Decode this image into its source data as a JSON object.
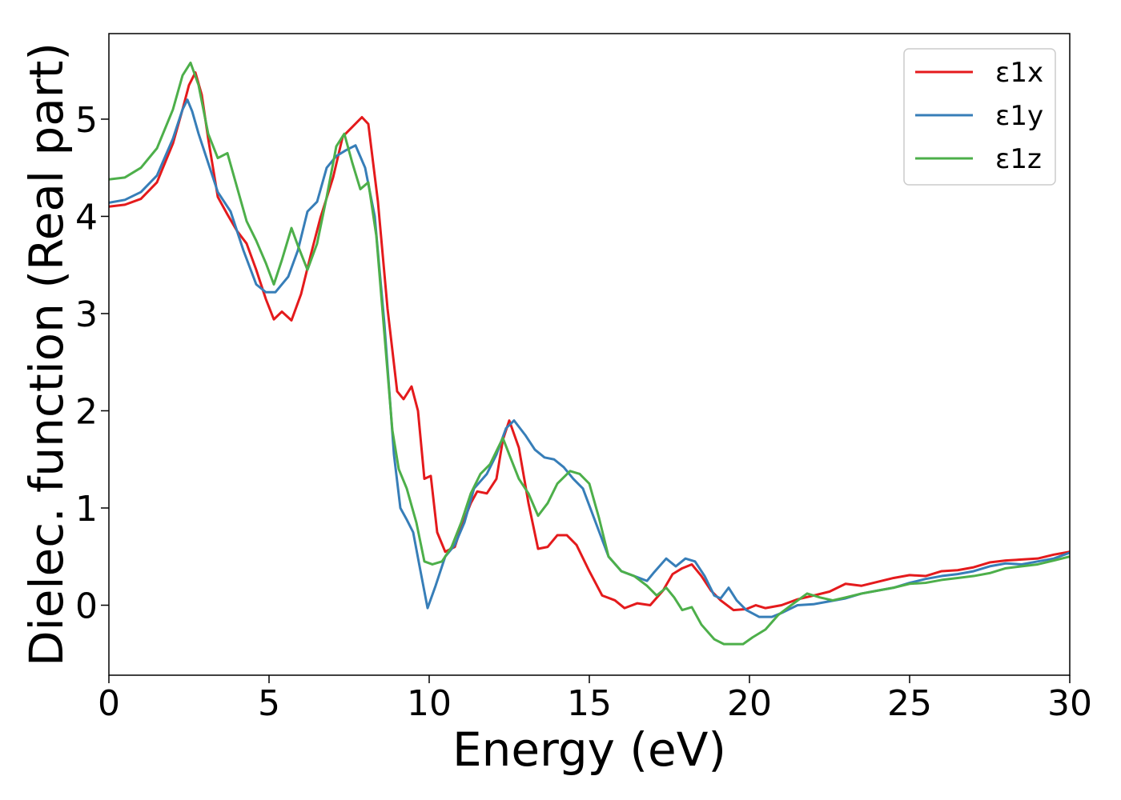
{
  "chart_data": {
    "type": "line",
    "title": "",
    "xlabel": "Energy (eV)",
    "ylabel": "Dielec. function (Real part)",
    "xlim": [
      0,
      30
    ],
    "ylim": [
      -0.72,
      5.88
    ],
    "grid": false,
    "legend_position": "top-right",
    "x_ticks": [
      0,
      5,
      10,
      15,
      20,
      25,
      30
    ],
    "y_ticks": [
      0,
      1,
      2,
      3,
      4,
      5
    ],
    "series": [
      {
        "name": "ε1x",
        "color": "#e41a1c",
        "points": [
          [
            0,
            4.1
          ],
          [
            0.5,
            4.12
          ],
          [
            1,
            4.18
          ],
          [
            1.5,
            4.35
          ],
          [
            2,
            4.75
          ],
          [
            2.3,
            5.1
          ],
          [
            2.5,
            5.35
          ],
          [
            2.7,
            5.48
          ],
          [
            2.9,
            5.25
          ],
          [
            3.1,
            4.8
          ],
          [
            3.4,
            4.2
          ],
          [
            3.7,
            4.02
          ],
          [
            4.0,
            3.85
          ],
          [
            4.3,
            3.72
          ],
          [
            4.6,
            3.45
          ],
          [
            4.9,
            3.15
          ],
          [
            5.15,
            2.94
          ],
          [
            5.4,
            3.02
          ],
          [
            5.7,
            2.93
          ],
          [
            6.0,
            3.2
          ],
          [
            6.3,
            3.6
          ],
          [
            6.6,
            3.98
          ],
          [
            7.0,
            4.4
          ],
          [
            7.3,
            4.82
          ],
          [
            7.6,
            4.92
          ],
          [
            7.9,
            5.02
          ],
          [
            8.1,
            4.95
          ],
          [
            8.4,
            4.15
          ],
          [
            8.7,
            3.05
          ],
          [
            9.0,
            2.2
          ],
          [
            9.2,
            2.12
          ],
          [
            9.45,
            2.25
          ],
          [
            9.65,
            2.0
          ],
          [
            9.85,
            1.3
          ],
          [
            10.05,
            1.33
          ],
          [
            10.25,
            0.75
          ],
          [
            10.5,
            0.55
          ],
          [
            10.8,
            0.6
          ],
          [
            11.0,
            0.8
          ],
          [
            11.3,
            1.05
          ],
          [
            11.5,
            1.17
          ],
          [
            11.8,
            1.15
          ],
          [
            12.1,
            1.3
          ],
          [
            12.3,
            1.7
          ],
          [
            12.5,
            1.9
          ],
          [
            12.8,
            1.62
          ],
          [
            13.1,
            1.05
          ],
          [
            13.4,
            0.58
          ],
          [
            13.7,
            0.6
          ],
          [
            14.0,
            0.72
          ],
          [
            14.3,
            0.72
          ],
          [
            14.6,
            0.62
          ],
          [
            15.0,
            0.35
          ],
          [
            15.4,
            0.1
          ],
          [
            15.8,
            0.05
          ],
          [
            16.1,
            -0.03
          ],
          [
            16.5,
            0.02
          ],
          [
            16.9,
            0.0
          ],
          [
            17.3,
            0.15
          ],
          [
            17.6,
            0.32
          ],
          [
            17.9,
            0.38
          ],
          [
            18.2,
            0.42
          ],
          [
            18.5,
            0.3
          ],
          [
            18.8,
            0.15
          ],
          [
            19.1,
            0.05
          ],
          [
            19.5,
            -0.05
          ],
          [
            19.9,
            -0.04
          ],
          [
            20.2,
            0.0
          ],
          [
            20.5,
            -0.03
          ],
          [
            21.0,
            0.0
          ],
          [
            21.5,
            0.06
          ],
          [
            22.0,
            0.1
          ],
          [
            22.5,
            0.14
          ],
          [
            23.0,
            0.22
          ],
          [
            23.5,
            0.2
          ],
          [
            24.0,
            0.24
          ],
          [
            24.5,
            0.28
          ],
          [
            25.0,
            0.31
          ],
          [
            25.5,
            0.3
          ],
          [
            26.0,
            0.35
          ],
          [
            26.5,
            0.36
          ],
          [
            27.0,
            0.39
          ],
          [
            27.5,
            0.44
          ],
          [
            28.0,
            0.46
          ],
          [
            28.5,
            0.47
          ],
          [
            29.0,
            0.48
          ],
          [
            29.5,
            0.52
          ],
          [
            30.0,
            0.55
          ]
        ]
      },
      {
        "name": "ε1y",
        "color": "#377eb8",
        "points": [
          [
            0,
            4.14
          ],
          [
            0.5,
            4.17
          ],
          [
            1,
            4.25
          ],
          [
            1.5,
            4.42
          ],
          [
            2,
            4.8
          ],
          [
            2.3,
            5.1
          ],
          [
            2.45,
            5.2
          ],
          [
            2.6,
            5.08
          ],
          [
            2.8,
            4.85
          ],
          [
            3.1,
            4.55
          ],
          [
            3.4,
            4.25
          ],
          [
            3.8,
            4.05
          ],
          [
            4.2,
            3.65
          ],
          [
            4.6,
            3.3
          ],
          [
            4.9,
            3.22
          ],
          [
            5.2,
            3.22
          ],
          [
            5.6,
            3.38
          ],
          [
            5.9,
            3.65
          ],
          [
            6.2,
            4.05
          ],
          [
            6.5,
            4.15
          ],
          [
            6.8,
            4.5
          ],
          [
            7.1,
            4.62
          ],
          [
            7.4,
            4.68
          ],
          [
            7.7,
            4.73
          ],
          [
            8.0,
            4.5
          ],
          [
            8.3,
            4.0
          ],
          [
            8.6,
            2.9
          ],
          [
            8.9,
            1.55
          ],
          [
            9.1,
            1.0
          ],
          [
            9.3,
            0.88
          ],
          [
            9.5,
            0.75
          ],
          [
            9.7,
            0.4
          ],
          [
            9.95,
            -0.03
          ],
          [
            10.2,
            0.2
          ],
          [
            10.5,
            0.5
          ],
          [
            10.8,
            0.62
          ],
          [
            11.1,
            0.85
          ],
          [
            11.4,
            1.2
          ],
          [
            11.8,
            1.35
          ],
          [
            12.1,
            1.55
          ],
          [
            12.4,
            1.82
          ],
          [
            12.65,
            1.9
          ],
          [
            13.0,
            1.75
          ],
          [
            13.3,
            1.6
          ],
          [
            13.6,
            1.52
          ],
          [
            13.9,
            1.5
          ],
          [
            14.2,
            1.42
          ],
          [
            14.5,
            1.3
          ],
          [
            14.8,
            1.2
          ],
          [
            15.2,
            0.85
          ],
          [
            15.6,
            0.5
          ],
          [
            16.0,
            0.35
          ],
          [
            16.4,
            0.3
          ],
          [
            16.8,
            0.25
          ],
          [
            17.0,
            0.33
          ],
          [
            17.4,
            0.48
          ],
          [
            17.7,
            0.4
          ],
          [
            18.0,
            0.48
          ],
          [
            18.3,
            0.45
          ],
          [
            18.6,
            0.3
          ],
          [
            18.9,
            0.1
          ],
          [
            19.1,
            0.07
          ],
          [
            19.35,
            0.18
          ],
          [
            19.6,
            0.05
          ],
          [
            19.9,
            -0.05
          ],
          [
            20.3,
            -0.12
          ],
          [
            20.7,
            -0.12
          ],
          [
            21.0,
            -0.08
          ],
          [
            21.5,
            0.0
          ],
          [
            22.0,
            0.01
          ],
          [
            22.5,
            0.04
          ],
          [
            23.0,
            0.07
          ],
          [
            23.5,
            0.12
          ],
          [
            24.0,
            0.15
          ],
          [
            24.5,
            0.18
          ],
          [
            25.0,
            0.23
          ],
          [
            25.5,
            0.27
          ],
          [
            26.0,
            0.3
          ],
          [
            26.5,
            0.32
          ],
          [
            27.0,
            0.35
          ],
          [
            27.5,
            0.4
          ],
          [
            28.0,
            0.43
          ],
          [
            28.5,
            0.42
          ],
          [
            29.0,
            0.45
          ],
          [
            29.5,
            0.48
          ],
          [
            30.0,
            0.54
          ]
        ]
      },
      {
        "name": "ε1z",
        "color": "#4daf4a",
        "points": [
          [
            0,
            4.38
          ],
          [
            0.5,
            4.4
          ],
          [
            1,
            4.5
          ],
          [
            1.5,
            4.7
          ],
          [
            2,
            5.1
          ],
          [
            2.3,
            5.45
          ],
          [
            2.55,
            5.58
          ],
          [
            2.8,
            5.35
          ],
          [
            3.1,
            4.85
          ],
          [
            3.4,
            4.6
          ],
          [
            3.7,
            4.65
          ],
          [
            4.0,
            4.3
          ],
          [
            4.3,
            3.95
          ],
          [
            4.6,
            3.75
          ],
          [
            4.9,
            3.52
          ],
          [
            5.15,
            3.3
          ],
          [
            5.4,
            3.55
          ],
          [
            5.7,
            3.88
          ],
          [
            5.9,
            3.7
          ],
          [
            6.2,
            3.45
          ],
          [
            6.5,
            3.72
          ],
          [
            6.8,
            4.2
          ],
          [
            7.1,
            4.72
          ],
          [
            7.35,
            4.85
          ],
          [
            7.6,
            4.55
          ],
          [
            7.85,
            4.28
          ],
          [
            8.1,
            4.35
          ],
          [
            8.35,
            3.8
          ],
          [
            8.6,
            2.8
          ],
          [
            8.85,
            1.8
          ],
          [
            9.05,
            1.4
          ],
          [
            9.3,
            1.2
          ],
          [
            9.6,
            0.85
          ],
          [
            9.85,
            0.45
          ],
          [
            10.1,
            0.42
          ],
          [
            10.4,
            0.45
          ],
          [
            10.7,
            0.6
          ],
          [
            11.0,
            0.85
          ],
          [
            11.3,
            1.15
          ],
          [
            11.6,
            1.35
          ],
          [
            11.9,
            1.45
          ],
          [
            12.3,
            1.72
          ],
          [
            12.5,
            1.55
          ],
          [
            12.8,
            1.3
          ],
          [
            13.1,
            1.15
          ],
          [
            13.4,
            0.92
          ],
          [
            13.7,
            1.05
          ],
          [
            14.0,
            1.25
          ],
          [
            14.4,
            1.38
          ],
          [
            14.7,
            1.35
          ],
          [
            15.0,
            1.25
          ],
          [
            15.3,
            0.9
          ],
          [
            15.6,
            0.5
          ],
          [
            16.0,
            0.35
          ],
          [
            16.4,
            0.3
          ],
          [
            16.8,
            0.2
          ],
          [
            17.1,
            0.1
          ],
          [
            17.4,
            0.18
          ],
          [
            17.65,
            0.08
          ],
          [
            17.9,
            -0.05
          ],
          [
            18.2,
            -0.02
          ],
          [
            18.5,
            -0.2
          ],
          [
            18.9,
            -0.35
          ],
          [
            19.2,
            -0.4
          ],
          [
            19.5,
            -0.4
          ],
          [
            19.8,
            -0.4
          ],
          [
            20.1,
            -0.33
          ],
          [
            20.5,
            -0.25
          ],
          [
            20.9,
            -0.1
          ],
          [
            21.3,
            0.0
          ],
          [
            21.8,
            0.12
          ],
          [
            22.2,
            0.08
          ],
          [
            22.6,
            0.05
          ],
          [
            23.0,
            0.08
          ],
          [
            23.5,
            0.12
          ],
          [
            24.0,
            0.15
          ],
          [
            24.5,
            0.18
          ],
          [
            25.0,
            0.22
          ],
          [
            25.5,
            0.23
          ],
          [
            26.0,
            0.26
          ],
          [
            26.5,
            0.28
          ],
          [
            27.0,
            0.3
          ],
          [
            27.5,
            0.33
          ],
          [
            28.0,
            0.38
          ],
          [
            28.5,
            0.4
          ],
          [
            29.0,
            0.42
          ],
          [
            29.5,
            0.46
          ],
          [
            30.0,
            0.5
          ]
        ]
      }
    ]
  }
}
